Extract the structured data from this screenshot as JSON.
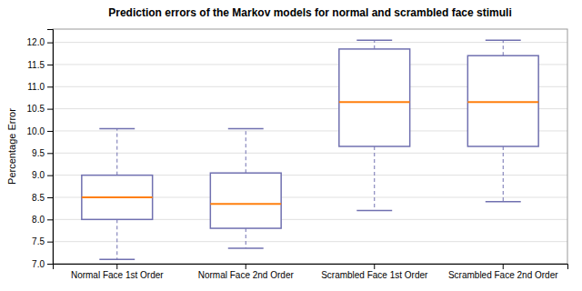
{
  "chart_data": {
    "type": "box",
    "title": "Prediction errors of the Markov models for normal and scrambled face stimuli",
    "ylabel": "Percentage Error",
    "categories": [
      "Normal Face 1st Order",
      "Normal Face 2nd Order",
      "Scrambled Face 1st Order",
      "Scrambled Face 2nd Order"
    ],
    "boxes": [
      {
        "whisker_low": 7.1,
        "q1": 8.0,
        "median": 8.5,
        "q3": 9.0,
        "whisker_high": 10.05
      },
      {
        "whisker_low": 7.35,
        "q1": 7.8,
        "median": 8.35,
        "q3": 9.05,
        "whisker_high": 10.05
      },
      {
        "whisker_low": 8.2,
        "q1": 9.65,
        "median": 10.65,
        "q3": 11.85,
        "whisker_high": 12.05
      },
      {
        "whisker_low": 8.4,
        "q1": 9.65,
        "median": 10.65,
        "q3": 11.7,
        "whisker_high": 12.05
      }
    ],
    "color": "#7070b0",
    "ylim": [
      7.0,
      12.3
    ],
    "yticks": [
      {
        "value": 7.0,
        "label": "7.0"
      },
      7.5,
      {
        "value": 8.0,
        "label": "8.0"
      },
      8.5,
      {
        "value": 9.0,
        "label": "9.0"
      },
      9.5,
      {
        "value": 10.0,
        "label": "10.0"
      },
      10.5,
      {
        "value": 11.0,
        "label": "11.0"
      },
      11.5,
      {
        "value": 12.0,
        "label": "12.0"
      }
    ],
    "grid": true
  }
}
